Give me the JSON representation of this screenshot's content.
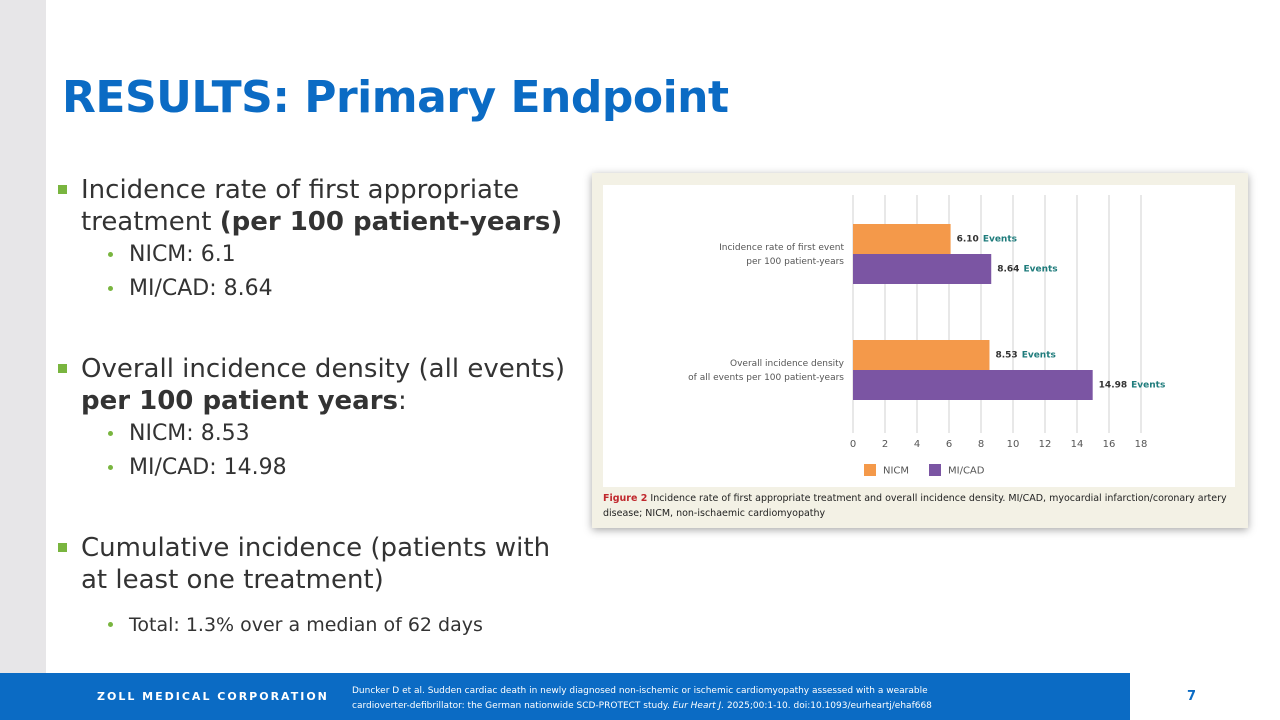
{
  "title": "RESULTS:  Primary Endpoint",
  "bullets": [
    {
      "runs": [
        {
          "text": "Incidence rate of first appropriate treatment "
        },
        {
          "text": "(per 100 patient-years)",
          "bold": true
        }
      ],
      "sub": [
        "NICM:  6.1",
        "MI/CAD:  8.64"
      ]
    },
    {
      "runs": [
        {
          "text": "Overall incidence density (all events) "
        },
        {
          "text": "per 100 patient years",
          "bold": true
        },
        {
          "text": ":"
        }
      ],
      "sub": [
        "NICM:  8.53",
        "MI/CAD:  14.98"
      ]
    },
    {
      "runs": [
        {
          "text": "Cumulative incidence (patients with at least one treatment)"
        }
      ],
      "sub": [
        "Total:  1.3% over a median of 62 days"
      ]
    }
  ],
  "chart_data": {
    "type": "hbar",
    "categories": [
      "Incidence rate of first event\nper 100 patient-years",
      "Overall incidence density\nof all events per 100 patient-years"
    ],
    "series": [
      {
        "name": "NICM",
        "color": "#f4994a",
        "values": [
          6.1,
          8.53
        ],
        "value_labels": [
          "6.10",
          "8.53"
        ]
      },
      {
        "name": "MI/CAD",
        "color": "#7b55a3",
        "values": [
          8.64,
          14.98
        ],
        "value_labels": [
          "8.64",
          "14.98"
        ]
      }
    ],
    "label_suffix": "Events",
    "xlim": [
      0,
      18
    ],
    "xticks": [
      0,
      2,
      4,
      6,
      8,
      10,
      12,
      14,
      16,
      18
    ],
    "grid": true,
    "legend": "bottom",
    "caption_label": "Figure 2",
    "caption": "Incidence rate of first appropriate treatment and overall incidence density. MI/CAD, myocardial infarction/coronary artery disease; NICM, non-ischaemic cardiomyopathy"
  },
  "footer": {
    "company": "ZOLL MEDICAL CORPORATION",
    "citation": [
      {
        "text": "Duncker D et al. Sudden cardiac death in newly diagnosed non-ischemic or ischemic cardiomyopathy assessed with a wearable cardioverter-defibrillator: the German nationwide SCD-PROTECT study. "
      },
      {
        "text": "Eur Heart J.",
        "italic": true
      },
      {
        "text": " 2025;00:1-10. doi:10.1093/eurheartj/ehaf668"
      }
    ],
    "page_number": "7"
  }
}
